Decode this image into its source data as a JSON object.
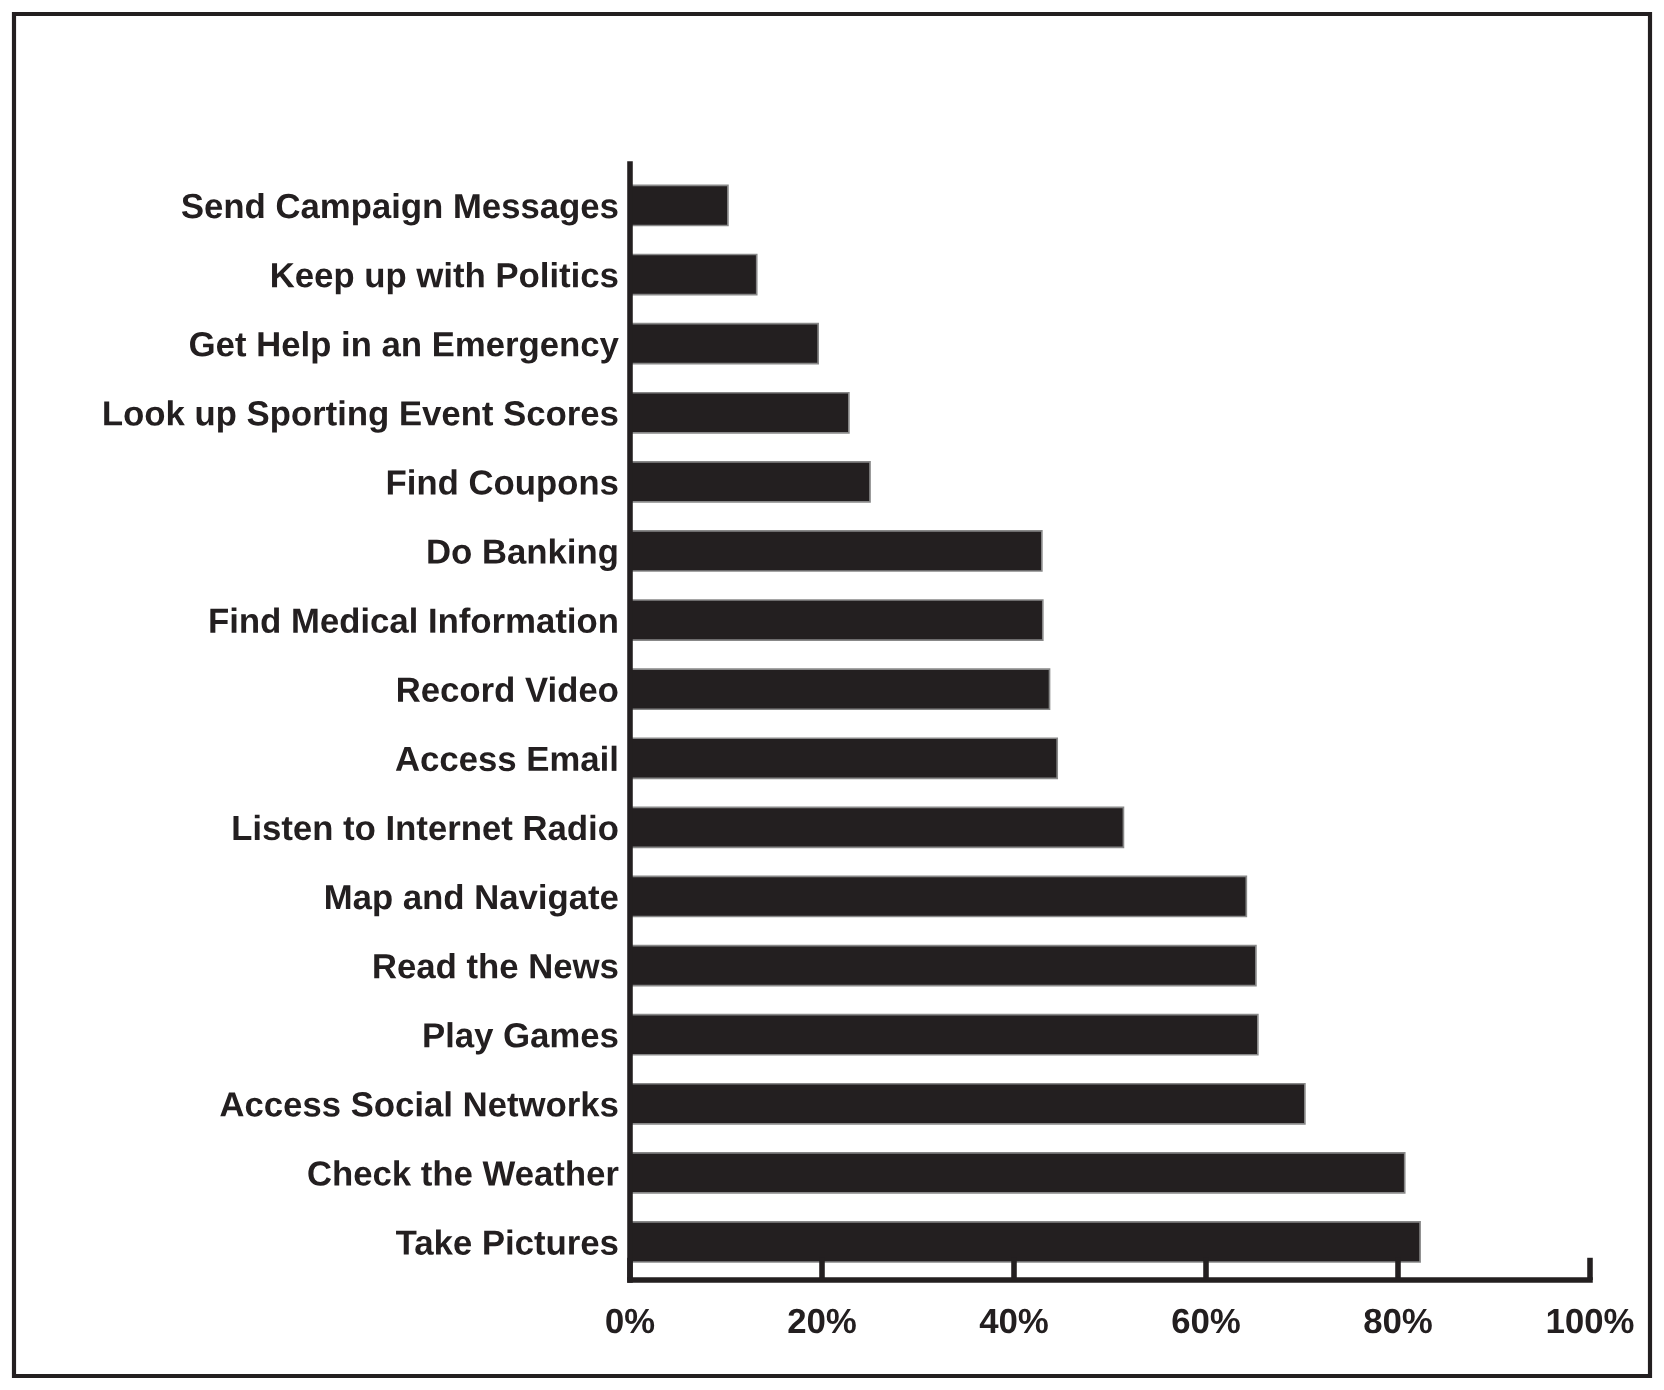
{
  "chart_data": {
    "type": "bar",
    "orientation": "horizontal",
    "categories": [
      "Send Campaign Messages",
      "Keep up with Politics",
      "Get Help in an Emergency",
      "Look up Sporting Event Scores",
      "Find Coupons",
      "Do Banking",
      "Find Medical Information",
      "Record Video",
      "Access Email",
      "Listen to Internet Radio",
      "Map and Navigate",
      "Read the News",
      "Play Games",
      "Access Social Networks",
      "Check the Weather",
      "Take Pictures"
    ],
    "values": [
      10.2,
      13.2,
      19.6,
      22.8,
      25.0,
      42.9,
      43.0,
      43.7,
      44.5,
      51.4,
      64.2,
      65.2,
      65.4,
      70.3,
      80.7,
      82.3
    ],
    "color": "#231f20",
    "xlim": [
      0,
      100
    ],
    "xticks": [
      {
        "value": 0,
        "label": "0%"
      },
      {
        "value": 20,
        "label": "20%"
      },
      {
        "value": 40,
        "label": "40%"
      },
      {
        "value": 60,
        "label": "60%"
      },
      {
        "value": 80,
        "label": "80%"
      },
      {
        "value": 100,
        "label": "100%"
      }
    ],
    "grid": false
  }
}
